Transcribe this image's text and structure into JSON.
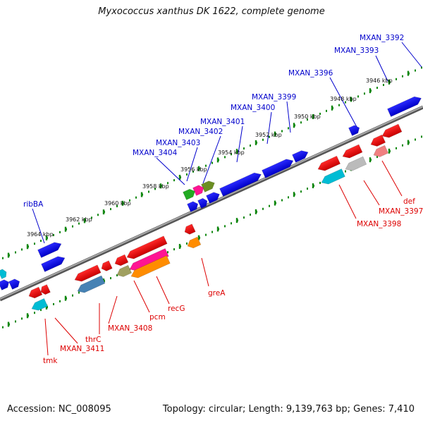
{
  "title": "Myxococcus xanthus DK 1622, complete genome",
  "footer": {
    "accession": "Accession: NC_008095",
    "stats": "Topology: circular; Length: 9,139,763 bp; Genes: 7,410"
  },
  "kbp_ticks": [
    "3946 kbp",
    "3948 kbp",
    "3950 kbp",
    "3952 kbp",
    "3954 kbp",
    "3956 kbp",
    "3958 kbp",
    "3960 kbp",
    "3962 kbp",
    "3964 kbp"
  ],
  "forward_labels": [
    "MXAN_3392",
    "MXAN_3393",
    "MXAN_3396",
    "MXAN_3399",
    "MXAN_3400",
    "MXAN_3401",
    "MXAN_3402",
    "MXAN_3403",
    "MXAN_3404",
    "ribBA"
  ],
  "reverse_labels": [
    "def",
    "MXAN_3397",
    "MXAN_3398",
    "greA",
    "recG",
    "pcm",
    "MXAN_3408",
    "thrC",
    "MXAN_3411",
    "tmk"
  ],
  "colors": {
    "forward_gene": "#0000ee",
    "reverse_gene": "#ee0000",
    "forward_label": "#0000cc",
    "reverse_label": "#dd0000",
    "backbone": "#888888",
    "tick": "#118811"
  }
}
